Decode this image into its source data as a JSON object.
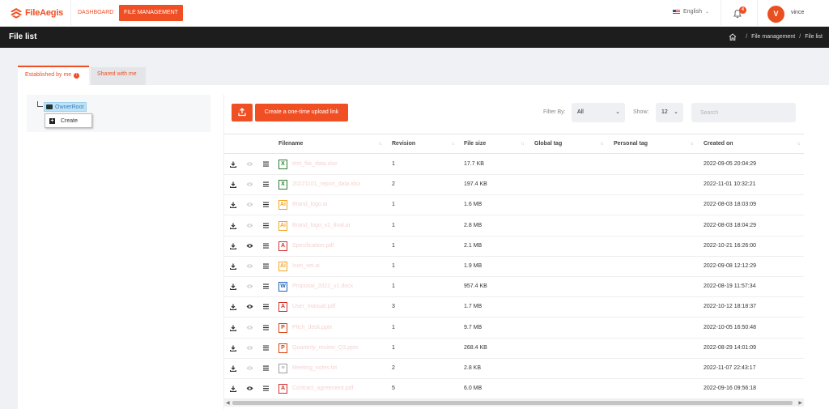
{
  "brand": {
    "name": "FileAegis",
    "color": "#f04e23"
  },
  "nav": {
    "dashboard": "DASHBOARD",
    "file_management": "FILE MANAGEMENT"
  },
  "language": "English",
  "notifications": {
    "count": "4"
  },
  "user": {
    "initial": "V",
    "name": "vince"
  },
  "page": {
    "title": "File list"
  },
  "breadcrumb": {
    "sep": "/",
    "items": [
      "File management",
      "File list"
    ]
  },
  "tabs": {
    "established": "Established by me",
    "shared": "Shared with me"
  },
  "tree": {
    "root": "OwnerRoot",
    "menu_create": "Create"
  },
  "toolbar": {
    "upload_link": "Create a one-time upload link",
    "filter_label": "Filter By:",
    "filter_value": "All",
    "show_label": "Show:",
    "show_value": "12",
    "search_placeholder": "Search"
  },
  "table": {
    "columns": [
      "Filename",
      "Revision",
      "File size",
      "Global tag",
      "Personal tag",
      "Created on"
    ],
    "rows": [
      {
        "type": "X",
        "type_color": "#2e7d32",
        "filename": "test_file_data.xlsx",
        "revision": "1",
        "size": "17.7 KB",
        "global_tag": "",
        "personal_tag": "",
        "created": "2022-09-05 20:04:29",
        "preview": false
      },
      {
        "type": "X",
        "type_color": "#2e7d32",
        "filename": "20221101_report_data.xlsx",
        "revision": "2",
        "size": "197.4 KB",
        "global_tag": "",
        "personal_tag": "",
        "created": "2022-11-01 10:32:21",
        "preview": false
      },
      {
        "type": "Ai",
        "type_color": "#f5a623",
        "filename": "Brand_logo.ai",
        "revision": "1",
        "size": "1.6 MB",
        "global_tag": "",
        "personal_tag": "",
        "created": "2022-08-03 18:03:09",
        "preview": false
      },
      {
        "type": "Ai",
        "type_color": "#f5a623",
        "filename": "Brand_logo_v2_final.ai",
        "revision": "1",
        "size": "2.8 MB",
        "global_tag": "",
        "personal_tag": "",
        "created": "2022-08-03 18:04:29",
        "preview": false
      },
      {
        "type": "A",
        "type_color": "#d32f2f",
        "filename": "Specification.pdf",
        "revision": "1",
        "size": "2.1 MB",
        "global_tag": "",
        "personal_tag": "",
        "created": "2022-10-21 16:26:00",
        "preview": true
      },
      {
        "type": "Ai",
        "type_color": "#f5a623",
        "filename": "Icon_set.ai",
        "revision": "1",
        "size": "1.9 MB",
        "global_tag": "",
        "personal_tag": "",
        "created": "2022-09-08 12:12:29",
        "preview": false
      },
      {
        "type": "W",
        "type_color": "#1e63b8",
        "filename": "Proposal_2022_v1.docx",
        "revision": "1",
        "size": "957.4 KB",
        "global_tag": "",
        "personal_tag": "",
        "created": "2022-08-19 11:57:34",
        "preview": false
      },
      {
        "type": "A",
        "type_color": "#d32f2f",
        "filename": "User_manual.pdf",
        "revision": "3",
        "size": "1.7 MB",
        "global_tag": "",
        "personal_tag": "",
        "created": "2022-10-12 18:18:37",
        "preview": true
      },
      {
        "type": "P",
        "type_color": "#d84315",
        "filename": "Pitch_deck.pptx",
        "revision": "1",
        "size": "9.7 MB",
        "global_tag": "",
        "personal_tag": "",
        "created": "2022-10-05 16:50:48",
        "preview": false
      },
      {
        "type": "P",
        "type_color": "#d84315",
        "filename": "Quarterly_review_Q3.pptx",
        "revision": "1",
        "size": "268.4 KB",
        "global_tag": "",
        "personal_tag": "",
        "created": "2022-08-29 14:01:09",
        "preview": false
      },
      {
        "type": "≡",
        "type_color": "#9e9e9e",
        "filename": "Meeting_notes.txt",
        "revision": "2",
        "size": "2.8 KB",
        "global_tag": "",
        "personal_tag": "",
        "created": "2022-11-07 22:43:17",
        "preview": false
      },
      {
        "type": "A",
        "type_color": "#d32f2f",
        "filename": "Contract_agreement.pdf",
        "revision": "5",
        "size": "6.0 MB",
        "global_tag": "",
        "personal_tag": "",
        "created": "2022-09-16 09:56:18",
        "preview": true
      }
    ]
  }
}
